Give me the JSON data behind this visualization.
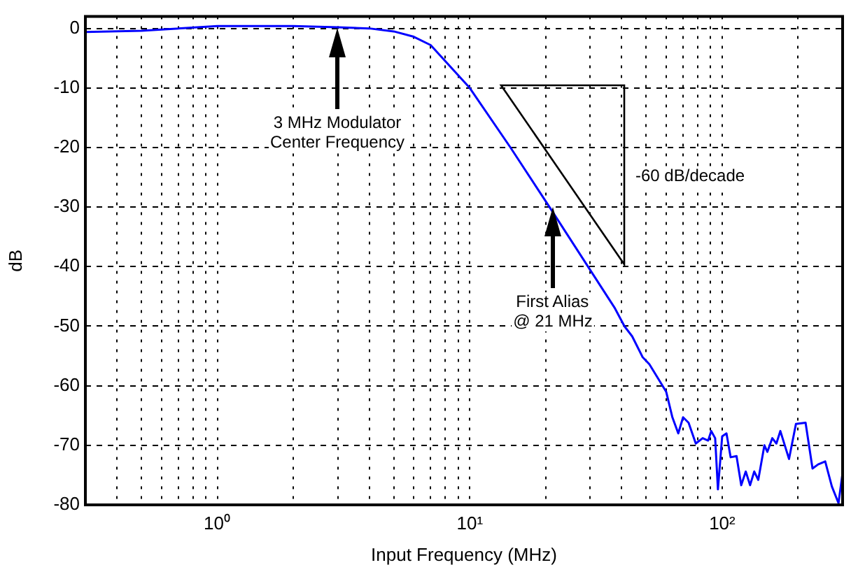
{
  "chart_data": {
    "type": "line",
    "xlabel": "Input Frequency (MHz)",
    "ylabel": "dB",
    "log": "x",
    "xlim": [
      0.3,
      300
    ],
    "ylim": [
      -80,
      2
    ],
    "xticks": [
      {
        "value": 0.4,
        "label": null
      },
      {
        "value": 0.5,
        "label": null
      },
      {
        "value": 0.6,
        "label": null
      },
      {
        "value": 0.7,
        "label": null
      },
      {
        "value": 0.8,
        "label": null
      },
      {
        "value": 0.9,
        "label": null
      },
      {
        "value": 1,
        "label": "10⁰"
      },
      {
        "value": 2,
        "label": null
      },
      {
        "value": 3,
        "label": null
      },
      {
        "value": 4,
        "label": null
      },
      {
        "value": 5,
        "label": null
      },
      {
        "value": 6,
        "label": null
      },
      {
        "value": 7,
        "label": null
      },
      {
        "value": 8,
        "label": null
      },
      {
        "value": 9,
        "label": null
      },
      {
        "value": 10,
        "label": "10¹"
      },
      {
        "value": 20,
        "label": null
      },
      {
        "value": 30,
        "label": null
      },
      {
        "value": 40,
        "label": null
      },
      {
        "value": 50,
        "label": null
      },
      {
        "value": 60,
        "label": null
      },
      {
        "value": 70,
        "label": null
      },
      {
        "value": 80,
        "label": null
      },
      {
        "value": 90,
        "label": null
      },
      {
        "value": 100,
        "label": "10²"
      },
      {
        "value": 200,
        "label": null
      },
      {
        "value": 300,
        "label": null
      }
    ],
    "yticks": [
      -80,
      -70,
      -60,
      -50,
      -40,
      -30,
      -20,
      -10,
      0
    ],
    "grid": true,
    "marker": "none",
    "line_style": "solid",
    "series": [
      {
        "color": "#0000ff",
        "x": [
          0.3,
          0.5,
          1,
          2,
          3,
          4,
          5,
          6,
          7,
          10,
          14.5,
          20.7,
          37.6,
          41,
          44,
          48.4,
          51.5,
          56.5,
          60,
          63.5,
          67,
          70,
          73.6,
          78.6,
          83.7,
          88,
          90.5,
          93.8,
          96.2,
          100,
          104,
          108,
          114,
          119,
          124,
          129,
          134,
          139,
          147,
          151,
          158,
          164,
          170,
          184,
          196,
          214,
          228,
          240,
          256,
          272,
          289,
          300
        ],
        "values": [
          -0.6,
          -0.4,
          0.4,
          0.4,
          0.2,
          0,
          -0.5,
          -1.4,
          -2.8,
          -10,
          -20,
          -30,
          -47,
          -50,
          -51.7,
          -55.2,
          -56.4,
          -59.2,
          -61,
          -65.3,
          -68,
          -65.3,
          -66.2,
          -69.7,
          -68.8,
          -69.2,
          -67.6,
          -68.8,
          -77.4,
          -68.5,
          -68,
          -72,
          -71.8,
          -76.7,
          -74.4,
          -76.7,
          -74.4,
          -75.8,
          -70,
          -71.1,
          -68.8,
          -69.7,
          -67.6,
          -72.3,
          -66.4,
          -66.2,
          -73.9,
          -73.2,
          -72.7,
          -76.9,
          -79.7,
          -74.6
        ]
      }
    ],
    "annotations": [
      "3 MHz Modulator\nCenter Frequency",
      "First Alias\n@ 21 MHz",
      "-60 dB/decade"
    ]
  }
}
